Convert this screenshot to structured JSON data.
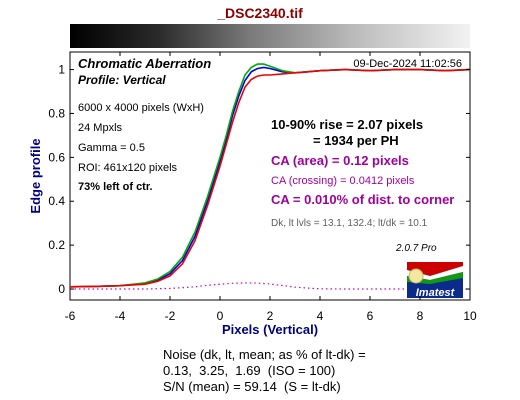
{
  "window_title": "_DSC2340.tif",
  "header": {
    "title": "Chromatic Aberration",
    "timestamp": "09-Dec-2024 11:02:56",
    "subtitle": "Profile: Vertical"
  },
  "info_left": [
    "6000 x 4000 pixels (WxH)",
    "24 Mpxls",
    "Gamma = 0.5",
    "ROI: 461x120 pixels",
    "73% left of ctr."
  ],
  "rise": {
    "line1": "10-90% rise = 2.07 pixels",
    "line2": "= 1934 per PH"
  },
  "ca": {
    "area": "CA (area) = 0.12 pixels",
    "crossing": "CA (crossing) = 0.0412 pixels",
    "corner": "CA = 0.010% of dist. to corner"
  },
  "levels": "Dk, lt lvls = 13.1, 132.4;  lt/dk = 10.1",
  "version": "2.0.7  Pro",
  "logo_text": "Imatest",
  "noise": {
    "line1": "Noise (dk, lt, mean; as % of lt-dk) =",
    "line2": "0.13,  3.25,  1.69  (ISO = 100)",
    "line3": "S/N (mean) = 59.14  (S = lt-dk)"
  },
  "colors": {
    "title": "#8b0000",
    "axis_label": "#000080",
    "ca_text": "#a000a0",
    "gray_text": "#606060",
    "red": "#ee0000",
    "green": "#00aa00",
    "blue": "#0000ee",
    "difference": "#cc00cc"
  },
  "chart_data": {
    "type": "line",
    "xlabel": "Pixels (Vertical)",
    "ylabel": "Edge profile",
    "xlim": [
      -6,
      10
    ],
    "ylim": [
      -0.05,
      1.08
    ],
    "xticks": [
      -6,
      -4,
      -2,
      0,
      2,
      4,
      6,
      8,
      10
    ],
    "yticks": [
      0,
      0.2,
      0.4,
      0.6,
      0.8,
      1
    ],
    "grid": false,
    "series": [
      {
        "color": "blue",
        "x": [
          -6,
          -5,
          -4,
          -3,
          -2.5,
          -2,
          -1.5,
          -1,
          -0.5,
          0,
          0.25,
          0.5,
          0.75,
          1,
          1.25,
          1.5,
          1.75,
          2,
          2.5,
          3,
          3.5,
          4,
          5,
          6,
          7,
          8,
          9,
          10
        ],
        "y": [
          0.01,
          0.012,
          0.015,
          0.025,
          0.04,
          0.07,
          0.13,
          0.24,
          0.4,
          0.58,
          0.68,
          0.79,
          0.88,
          0.95,
          0.99,
          1.005,
          1.01,
          1.005,
          0.99,
          0.985,
          0.99,
          0.995,
          1.0,
          0.995,
          1.0,
          1.0,
          0.995,
          1.0
        ]
      },
      {
        "color": "green",
        "x": [
          -6,
          -5,
          -4,
          -3,
          -2.5,
          -2,
          -1.5,
          -1,
          -0.5,
          0,
          0.25,
          0.5,
          0.75,
          1,
          1.25,
          1.5,
          1.75,
          2,
          2.5,
          3,
          3.5,
          4,
          5,
          6,
          7,
          8,
          9,
          10
        ],
        "y": [
          0.01,
          0.012,
          0.015,
          0.028,
          0.045,
          0.08,
          0.145,
          0.26,
          0.42,
          0.6,
          0.7,
          0.81,
          0.9,
          0.975,
          1.01,
          1.025,
          1.025,
          1.015,
          0.995,
          0.985,
          0.99,
          0.995,
          1.0,
          0.995,
          1.0,
          1.0,
          0.995,
          1.0
        ]
      },
      {
        "color": "red",
        "x": [
          -6,
          -5,
          -4,
          -3,
          -2.5,
          -2,
          -1.5,
          -1,
          -0.5,
          0,
          0.25,
          0.5,
          0.75,
          1,
          1.25,
          1.5,
          1.75,
          2,
          2.5,
          3,
          3.5,
          4,
          5,
          6,
          7,
          8,
          9,
          10
        ],
        "y": [
          0.01,
          0.012,
          0.015,
          0.022,
          0.035,
          0.06,
          0.115,
          0.22,
          0.38,
          0.56,
          0.66,
          0.76,
          0.85,
          0.92,
          0.955,
          0.97,
          0.975,
          0.975,
          0.98,
          0.985,
          0.99,
          0.995,
          1.0,
          0.995,
          1.0,
          1.0,
          0.995,
          1.0
        ]
      },
      {
        "color": "difference",
        "x": [
          -6,
          -4,
          -3,
          -2,
          -1.5,
          -1,
          -0.5,
          0,
          0.5,
          1,
          1.5,
          2,
          2.5,
          3,
          3.5,
          4,
          5,
          6,
          10
        ],
        "y": [
          0.0,
          0.0,
          0.0,
          0.003,
          0.006,
          0.01,
          0.017,
          0.022,
          0.026,
          0.028,
          0.027,
          0.023,
          0.016,
          0.009,
          0.004,
          0.001,
          0.0,
          0.0,
          0.0
        ]
      }
    ]
  }
}
